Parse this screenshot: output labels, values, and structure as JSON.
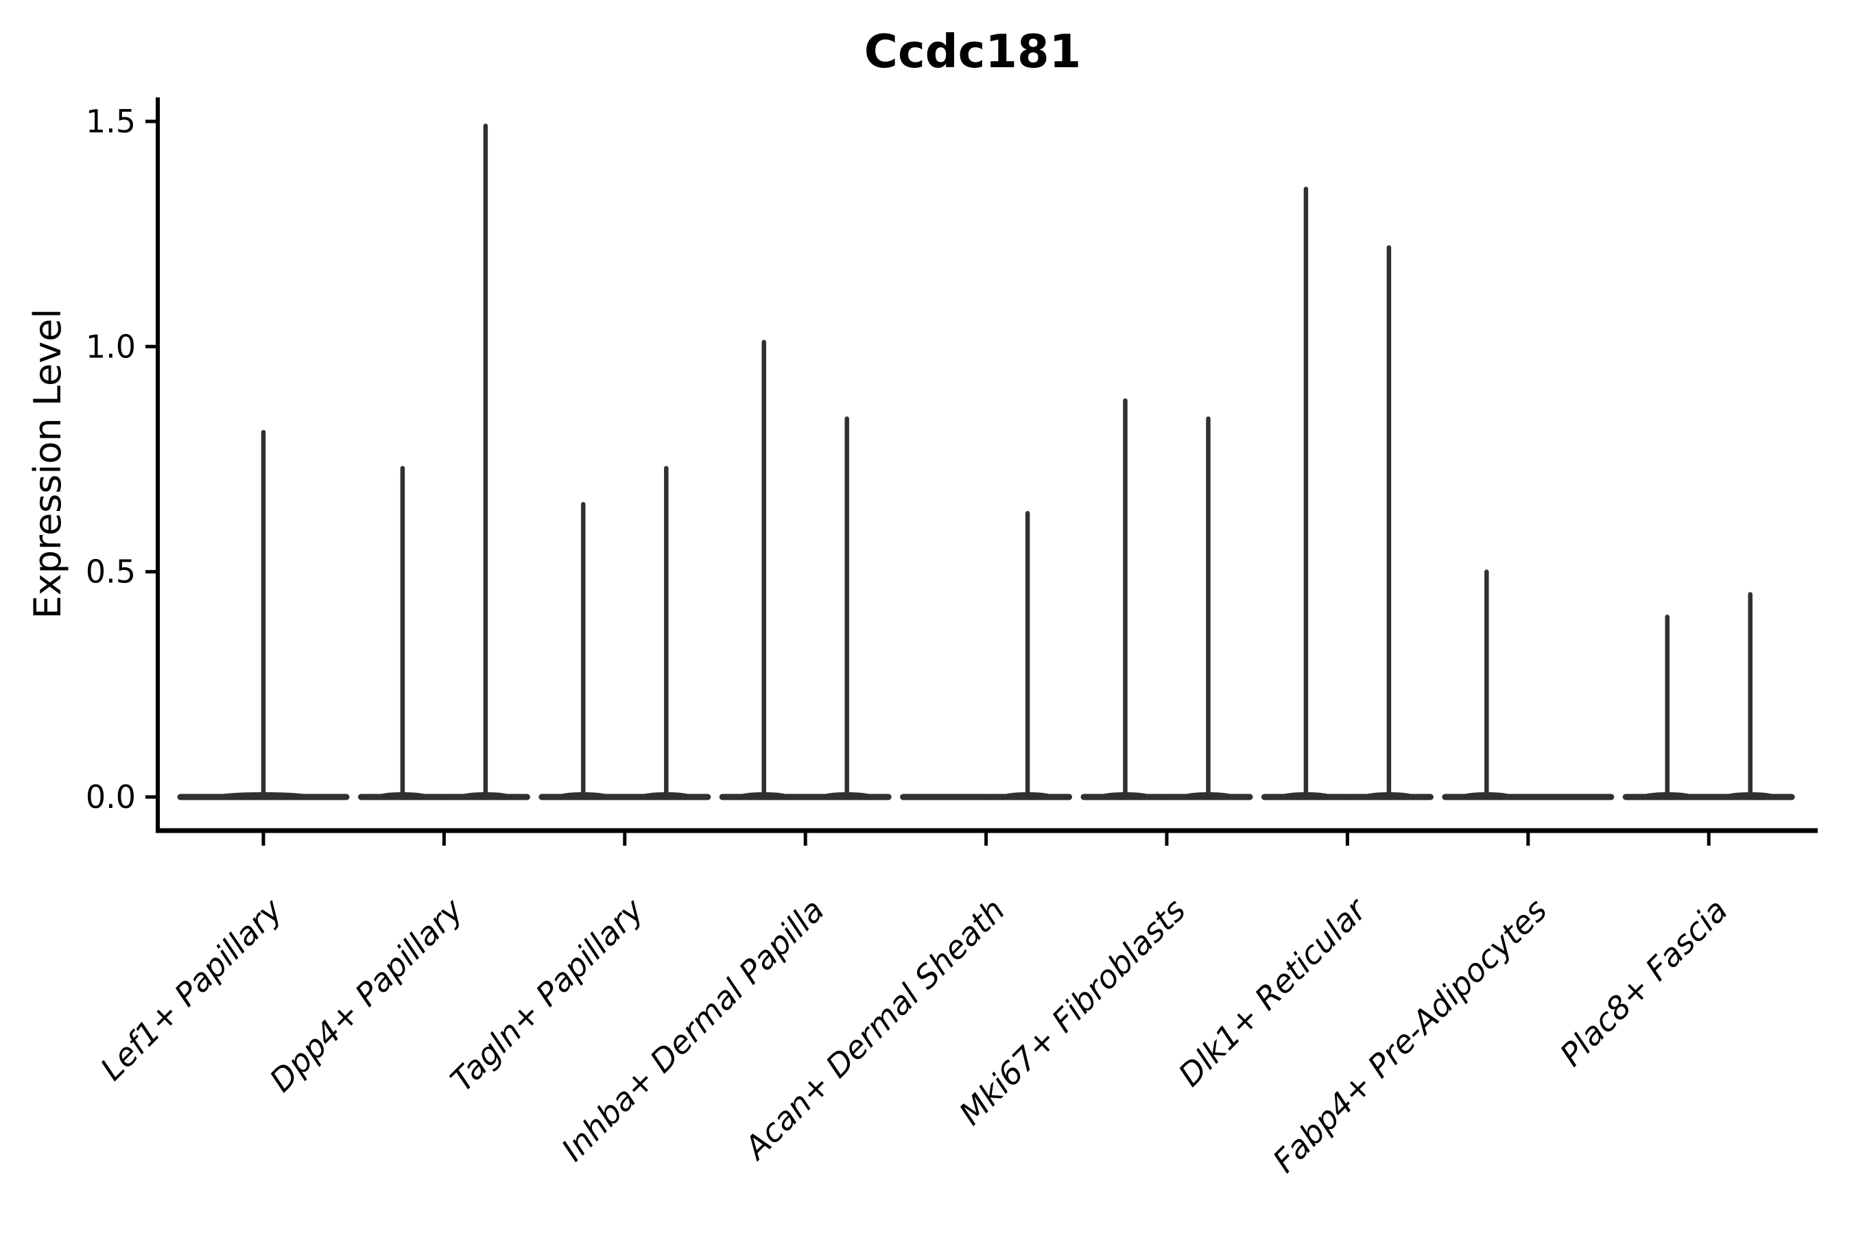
{
  "chart_data": {
    "type": "violin",
    "title": "Ccdc181",
    "xlabel": "",
    "ylabel": "Expression Level",
    "ylim": [
      -0.07,
      1.55
    ],
    "grid": false,
    "legend": "none",
    "yticks": {
      "values": [
        0.0,
        0.5,
        1.0,
        1.5
      ],
      "labels": [
        "0.0",
        "0.5",
        "1.0",
        "1.5"
      ]
    },
    "categories": [
      "Lef1+ Papillary",
      "Dpp4+ Papillary",
      "Tagln+ Papillary",
      "Inhba+ Dermal Papilla",
      "Acan+ Dermal Sheath",
      "Mki67+ Fibroblasts",
      "Dlk1+ Reticular",
      "Fabp4+ Pre-Adipocytes",
      "Plac8+ Fascia"
    ],
    "groups": [
      {
        "label": "Lef1+ Papillary",
        "violins": [
          {
            "span": "full",
            "max": 0.81
          }
        ]
      },
      {
        "label": "Dpp4+ Papillary",
        "violins": [
          {
            "span": "left",
            "max": 0.73
          },
          {
            "span": "right",
            "max": 1.49
          }
        ]
      },
      {
        "label": "Tagln+ Papillary",
        "violins": [
          {
            "span": "left",
            "max": 0.65
          },
          {
            "span": "right",
            "max": 0.73
          }
        ]
      },
      {
        "label": "Inhba+ Dermal Papilla",
        "violins": [
          {
            "span": "left",
            "max": 1.01
          },
          {
            "span": "right",
            "max": 0.84
          }
        ]
      },
      {
        "label": "Acan+ Dermal Sheath",
        "violins": [
          {
            "span": "left",
            "max": 0
          },
          {
            "span": "right",
            "max": 0.63
          }
        ]
      },
      {
        "label": "Mki67+ Fibroblasts",
        "violins": [
          {
            "span": "left",
            "max": 0.88
          },
          {
            "span": "right",
            "max": 0.84
          }
        ]
      },
      {
        "label": "Dlk1+ Reticular",
        "violins": [
          {
            "span": "left",
            "max": 1.35
          },
          {
            "span": "right",
            "max": 1.22
          }
        ]
      },
      {
        "label": "Fabp4+ Pre-Adipocytes",
        "violins": [
          {
            "span": "left",
            "max": 0.5
          },
          {
            "span": "right",
            "max": 0
          }
        ]
      },
      {
        "label": "Plac8+ Fascia",
        "violins": [
          {
            "span": "left",
            "max": 0.4
          },
          {
            "span": "right",
            "max": 0.45
          }
        ]
      }
    ],
    "colors": {
      "axis": "#000000",
      "text": "#000000",
      "violin": "#303030",
      "background": "#ffffff"
    }
  }
}
